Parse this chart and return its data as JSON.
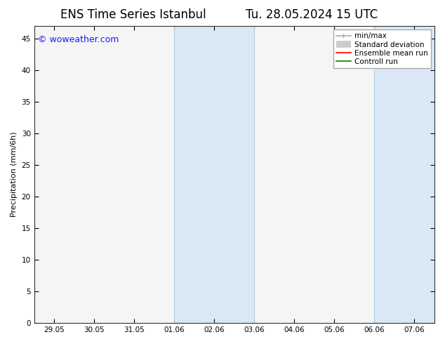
{
  "title_left": "ENS Time Series Istanbul",
  "title_right": "Tu. 28.05.2024 15 UTC",
  "ylabel": "Precipitation (mm/6h)",
  "watermark": "© woweather.com",
  "ylim": [
    0,
    47
  ],
  "yticks": [
    0,
    5,
    10,
    15,
    20,
    25,
    30,
    35,
    40,
    45
  ],
  "xtick_labels": [
    "29.05",
    "30.05",
    "31.05",
    "01.06",
    "02.06",
    "03.06",
    "04.06",
    "05.06",
    "06.06",
    "07.06"
  ],
  "xtick_positions": [
    0,
    1,
    2,
    3,
    4,
    5,
    6,
    7,
    8,
    9
  ],
  "xlim": [
    -0.5,
    9.5
  ],
  "shaded_regions": [
    {
      "xmin": 3.0,
      "xmax": 5.0,
      "color": "#dae8f5"
    },
    {
      "xmin": 8.0,
      "xmax": 9.5,
      "color": "#dae8f5"
    }
  ],
  "shaded_borders": [
    {
      "x": 3.0,
      "color": "#b8cfe0",
      "lw": 0.8
    },
    {
      "x": 5.0,
      "color": "#b8cfe0",
      "lw": 0.8
    },
    {
      "x": 8.0,
      "color": "#b8cfe0",
      "lw": 0.8
    }
  ],
  "bg_color": "#ffffff",
  "plot_bg_color": "#f5f5f5",
  "legend_items": [
    {
      "label": "min/max",
      "color": "#aaaaaa",
      "lw": 1.2
    },
    {
      "label": "Standard deviation",
      "color": "#cccccc",
      "lw": 7
    },
    {
      "label": "Ensemble mean run",
      "color": "#ff0000",
      "lw": 1.2
    },
    {
      "label": "Controll run",
      "color": "#008000",
      "lw": 1.2
    }
  ],
  "title_fontsize": 12,
  "watermark_color": "#1a1aff",
  "watermark_fontsize": 9,
  "axis_label_fontsize": 8,
  "tick_fontsize": 7.5,
  "legend_fontsize": 7.5
}
